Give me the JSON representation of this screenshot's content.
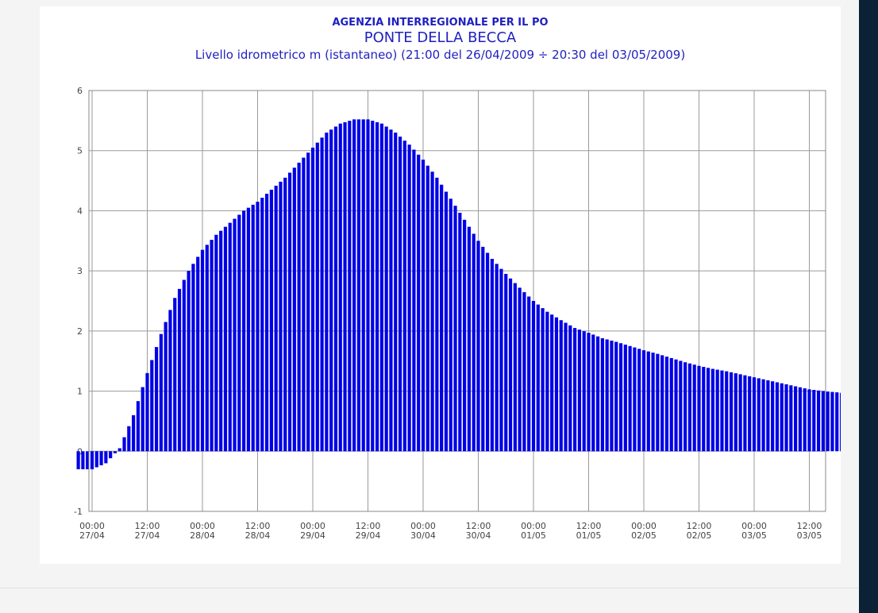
{
  "chart_data": {
    "type": "bar",
    "title": "AGENZIA INTERREGIONALE PER IL PO",
    "subtitle": "PONTE DELLA BECCA",
    "description": "Livello idrometrico m (istantaneo) (21:00 del 26/04/2009 ÷ 20:30 del 03/05/2009)",
    "ylim": [
      -1,
      6
    ],
    "y_ticks": [
      -1,
      0,
      1,
      2,
      3,
      4,
      5,
      6
    ],
    "grid": true,
    "x_tick_labels": [
      [
        "00:00",
        "27/04"
      ],
      [
        "12:00",
        "27/04"
      ],
      [
        "00:00",
        "28/04"
      ],
      [
        "12:00",
        "28/04"
      ],
      [
        "00:00",
        "29/04"
      ],
      [
        "12:00",
        "29/04"
      ],
      [
        "00:00",
        "30/04"
      ],
      [
        "12:00",
        "30/04"
      ],
      [
        "00:00",
        "01/05"
      ],
      [
        "12:00",
        "01/05"
      ],
      [
        "00:00",
        "02/05"
      ],
      [
        "12:00",
        "02/05"
      ],
      [
        "00:00",
        "03/05"
      ],
      [
        "12:00",
        "03/05"
      ]
    ],
    "x": [
      "26/04 21:00",
      "27/04 00:00",
      "27/04 03:00",
      "27/04 06:00",
      "27/04 09:00",
      "27/04 12:00",
      "27/04 15:00",
      "27/04 18:00",
      "27/04 21:00",
      "28/04 00:00",
      "28/04 03:00",
      "28/04 06:00",
      "28/04 09:00",
      "28/04 12:00",
      "28/04 15:00",
      "28/04 18:00",
      "28/04 21:00",
      "29/04 00:00",
      "29/04 03:00",
      "29/04 06:00",
      "29/04 09:00",
      "29/04 12:00",
      "29/04 15:00",
      "29/04 18:00",
      "29/04 21:00",
      "30/04 00:00",
      "30/04 03:00",
      "30/04 06:00",
      "30/04 09:00",
      "30/04 12:00",
      "30/04 15:00",
      "30/04 18:00",
      "30/04 21:00",
      "01/05 00:00",
      "01/05 03:00",
      "01/05 06:00",
      "01/05 09:00",
      "01/05 12:00",
      "01/05 15:00",
      "01/05 18:00",
      "01/05 21:00",
      "02/05 00:00",
      "02/05 03:00",
      "02/05 06:00",
      "02/05 09:00",
      "02/05 12:00",
      "02/05 15:00",
      "02/05 18:00",
      "02/05 21:00",
      "03/05 00:00",
      "03/05 03:00",
      "03/05 06:00",
      "03/05 09:00",
      "03/05 12:00",
      "03/05 15:00",
      "03/05 18:00",
      "03/05 20:30"
    ],
    "values": [
      -0.3,
      -0.3,
      -0.2,
      0.05,
      0.6,
      1.3,
      1.95,
      2.55,
      3.0,
      3.35,
      3.6,
      3.8,
      4.0,
      4.15,
      4.35,
      4.55,
      4.8,
      5.05,
      5.3,
      5.45,
      5.52,
      5.52,
      5.45,
      5.3,
      5.1,
      4.85,
      4.55,
      4.2,
      3.85,
      3.5,
      3.2,
      2.95,
      2.72,
      2.5,
      2.32,
      2.18,
      2.05,
      1.97,
      1.88,
      1.82,
      1.75,
      1.68,
      1.62,
      1.55,
      1.48,
      1.42,
      1.37,
      1.33,
      1.28,
      1.23,
      1.18,
      1.13,
      1.08,
      1.03,
      1.0,
      0.98,
      0.96
    ],
    "bar_color": "#0000e6"
  }
}
